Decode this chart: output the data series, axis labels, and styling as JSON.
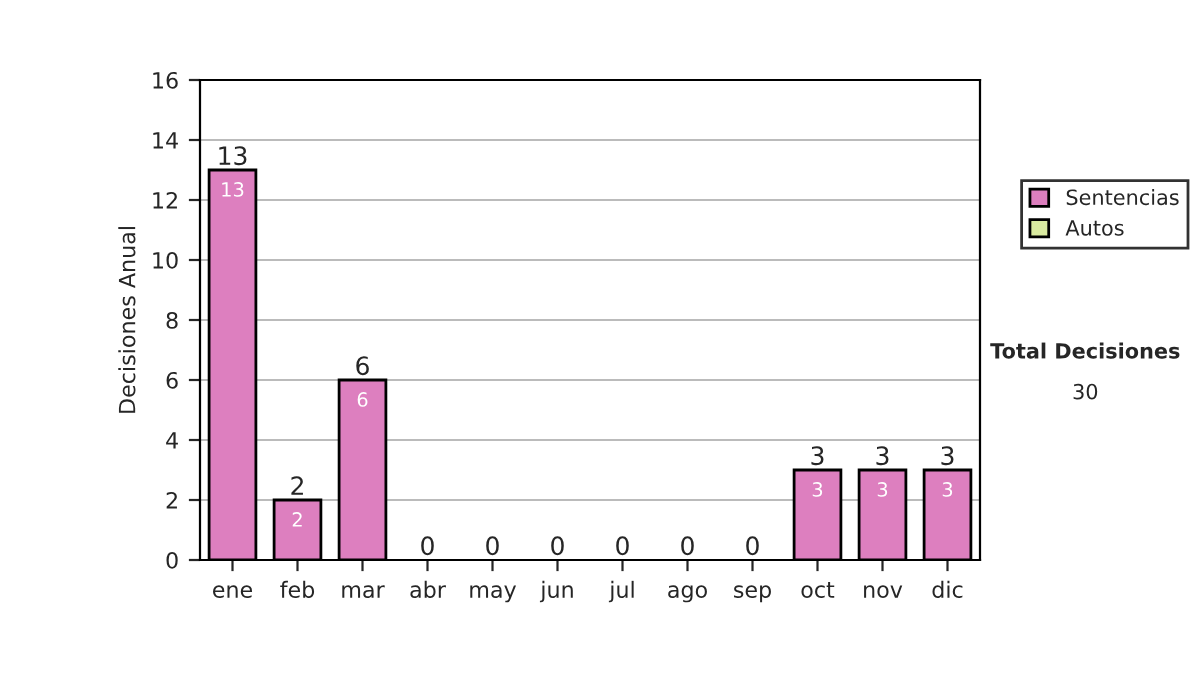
{
  "chart_data": {
    "type": "bar",
    "stacked": true,
    "ylabel": "Decisiones Anual",
    "categories": [
      "ene",
      "feb",
      "mar",
      "abr",
      "may",
      "jun",
      "jul",
      "ago",
      "sep",
      "oct",
      "nov",
      "dic"
    ],
    "series": [
      {
        "name": "Sentencias",
        "color": "#dd7fbf",
        "values": [
          13,
          2,
          6,
          0,
          0,
          0,
          0,
          0,
          0,
          3,
          3,
          3
        ],
        "value_labels": [
          "13",
          "2",
          "6",
          null,
          null,
          null,
          null,
          null,
          null,
          "3",
          "3",
          "3"
        ]
      },
      {
        "name": "Autos",
        "color": "#d9eaa0",
        "values": [
          0,
          0,
          0,
          0,
          0,
          0,
          0,
          0,
          0,
          0,
          0,
          0
        ]
      }
    ],
    "totals": [
      "13",
      "2",
      "6",
      "0",
      "0",
      "0",
      "0",
      "0",
      "0",
      "3",
      "3",
      "3"
    ],
    "ylim": [
      0,
      16
    ],
    "yticks": [
      0,
      2,
      4,
      6,
      8,
      10,
      12,
      14,
      16
    ],
    "grid": "y",
    "legend": "right",
    "annotations": [
      "Total Decisiones",
      "30"
    ]
  }
}
